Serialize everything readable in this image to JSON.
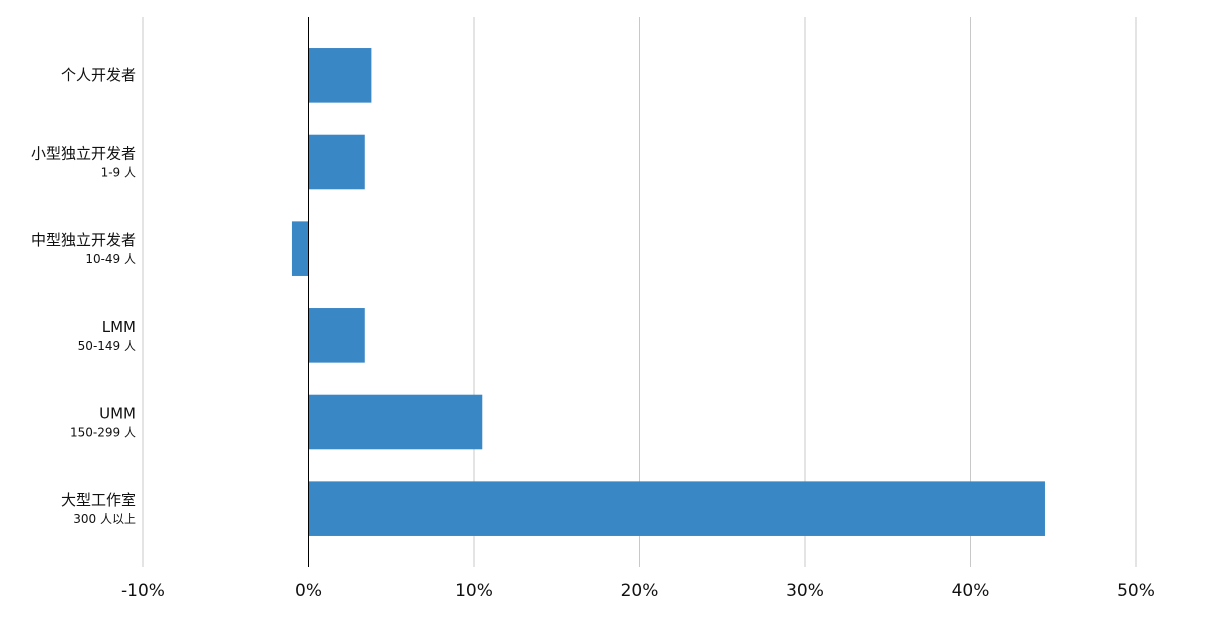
{
  "chart_data": {
    "type": "hbar",
    "categories": [
      "个人开发者",
      "小型独立开发者",
      "中型独立开发者",
      "LMM",
      "UMM",
      "大型工作室"
    ],
    "category_notes": [
      null,
      "1-9 人",
      "10-49 人",
      "50-149 人",
      "150-299 人",
      "300 人以上"
    ],
    "values": [
      3.8,
      3.4,
      -1.0,
      3.4,
      10.5,
      44.5
    ],
    "color": "#3a87c6",
    "xlim": [
      -10,
      50
    ],
    "xticks": [
      {
        "value": -10,
        "label": "-10%"
      },
      {
        "value": 0,
        "label": "0%"
      },
      {
        "value": 10,
        "label": "10%"
      },
      {
        "value": 20,
        "label": "20%"
      },
      {
        "value": 30,
        "label": "30%"
      },
      {
        "value": 40,
        "label": "40%"
      },
      {
        "value": 50,
        "label": "50%"
      }
    ],
    "grid": true
  }
}
